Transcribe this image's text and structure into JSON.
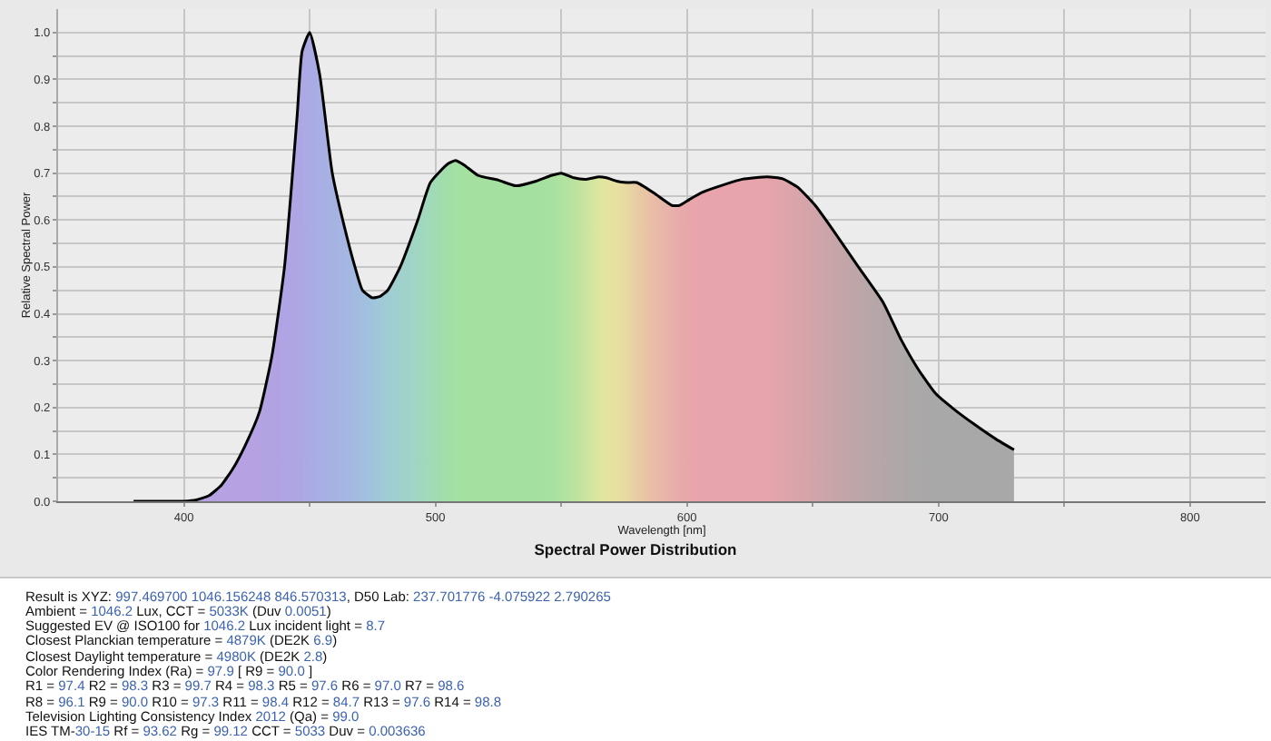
{
  "chart_data": {
    "type": "area",
    "title": "Spectral Power Distribution",
    "xlabel": "Wavelength [nm]",
    "ylabel": "Relative Spectral Power",
    "x": [
      380,
      390,
      400,
      405,
      410,
      415,
      420,
      425,
      430,
      435,
      440,
      445,
      447,
      450,
      454,
      459,
      465,
      468,
      471,
      475,
      478,
      481,
      486,
      493,
      498,
      505,
      508,
      512,
      517,
      525,
      532,
      540,
      546,
      550,
      555,
      560,
      565,
      568,
      572,
      576,
      580,
      587,
      594,
      597,
      601,
      606,
      615,
      622,
      632,
      638,
      644,
      651,
      658,
      668,
      678,
      685,
      692,
      699,
      706,
      714,
      723,
      730
    ],
    "series": [
      {
        "color": "#000000",
        "values": [
          0,
          0,
          0,
          0.003,
          0.012,
          0.035,
          0.074,
          0.126,
          0.19,
          0.31,
          0.5,
          0.82,
          0.96,
          1.0,
          0.91,
          0.7,
          0.56,
          0.5,
          0.45,
          0.434,
          0.437,
          0.45,
          0.5,
          0.6,
          0.68,
          0.72,
          0.727,
          0.715,
          0.695,
          0.685,
          0.673,
          0.683,
          0.695,
          0.7,
          0.69,
          0.687,
          0.692,
          0.69,
          0.683,
          0.68,
          0.68,
          0.657,
          0.631,
          0.631,
          0.644,
          0.659,
          0.676,
          0.687,
          0.692,
          0.688,
          0.67,
          0.631,
          0.579,
          0.501,
          0.424,
          0.346,
          0.281,
          0.229,
          0.197,
          0.165,
          0.132,
          0.11
        ],
        "colors": [
          "#b6a2e2",
          "#b6a2e2",
          "#b6a2e2",
          "#b6a2e2",
          "#b6a2e2",
          "#b6a2e2",
          "#b6a2e2",
          "#b6a2e2",
          "#b4a2e2",
          "#b2a2e2",
          "#b0a4e4",
          "#aea6e4",
          "#aca8e4",
          "#aaaae4",
          "#a8aee4",
          "#a6b2e2",
          "#a4b6e2",
          "#a2bae0",
          "#a2bee0",
          "#a0c4dc",
          "#a0c8d8",
          "#a0ccd4",
          "#a0d0cc",
          "#a0d6c2",
          "#a0dab8",
          "#a2dea8",
          "#a2e0a4",
          "#a4e0a0",
          "#a4e0a0",
          "#a4e0a0",
          "#a4e0a0",
          "#a4e0a0",
          "#a8e0a0",
          "#aee2a0",
          "#bae2a0",
          "#cce4a0",
          "#dce6a0",
          "#e4e4a0",
          "#e8e0a0",
          "#e8d8a2",
          "#e8cca4",
          "#e8bca6",
          "#e8b0aa",
          "#e8aaaa",
          "#e8a6ac",
          "#e8a4ac",
          "#e8a4ac",
          "#e8a4ac",
          "#e6a4ac",
          "#e0a4ac",
          "#daa4aa",
          "#d0a4aa",
          "#c8a4a8",
          "#bca6a8",
          "#b4a6a8",
          "#aea8a8",
          "#aaa8a8",
          "#a8a8a8",
          "#a8a8a8",
          "#a8a8a8",
          "#a8a8a8",
          "#a8a8a8"
        ]
      }
    ],
    "xlim": [
      350,
      830
    ],
    "ylim": [
      0,
      1.05
    ],
    "xticks": [
      400,
      {
        "value": 450,
        "label": null
      },
      500,
      {
        "value": 550,
        "label": null
      },
      600,
      {
        "value": 650,
        "label": null
      },
      700,
      {
        "value": 750,
        "label": null
      },
      800
    ],
    "yticks": [
      {
        "value": 0,
        "label": "0.0"
      },
      {
        "value": 0.05,
        "label": null
      },
      0.1,
      {
        "value": 0.15,
        "label": null
      },
      0.2,
      {
        "value": 0.25,
        "label": null
      },
      0.3,
      {
        "value": 0.35,
        "label": null
      },
      0.4,
      {
        "value": 0.45,
        "label": null
      },
      0.5,
      {
        "value": 0.55,
        "label": null
      },
      0.6,
      {
        "value": 0.65,
        "label": null
      },
      0.7,
      {
        "value": 0.75,
        "label": null
      },
      0.8,
      {
        "value": 0.85,
        "label": null
      },
      0.9,
      {
        "value": 0.95,
        "label": null
      },
      {
        "value": 1.0,
        "label": "1.0"
      }
    ],
    "grid": true,
    "annotations": [
      "Result is XYZ: 997.469700 1046.156248 846.570313, D50 Lab: 237.701776 -4.075922 2.790265",
      "Ambient = 1046.2 Lux, CCT = 5033K (Duv 0.0051)",
      "Suggested EV @ ISO100 for 1046.2 Lux incident light = 8.7",
      "Closest Planckian temperature = 4879K (DE2K 6.9)",
      "Closest Daylight temperature = 4980K (DE2K 2.8)",
      "Color Rendering Index (Ra) = 97.9 [ R9 = 90.0 ]",
      "R1 = 97.4 R2 = 98.3 R3 = 99.7 R4 = 98.3 R5 = 97.6 R6 = 97.0 R7 = 98.6",
      "R8 = 96.1 R9 = 90.0 R10 = 97.3 R11 = 98.4 R12 = 84.7 R13 = 97.6 R14 = 98.8",
      "Television Lighting Consistency Index 2012 (Qa) = 99.0",
      "IES TM-30-15 Rf = 93.62 Rg = 99.12 CCT = 5033 Duv = 0.003636"
    ]
  }
}
